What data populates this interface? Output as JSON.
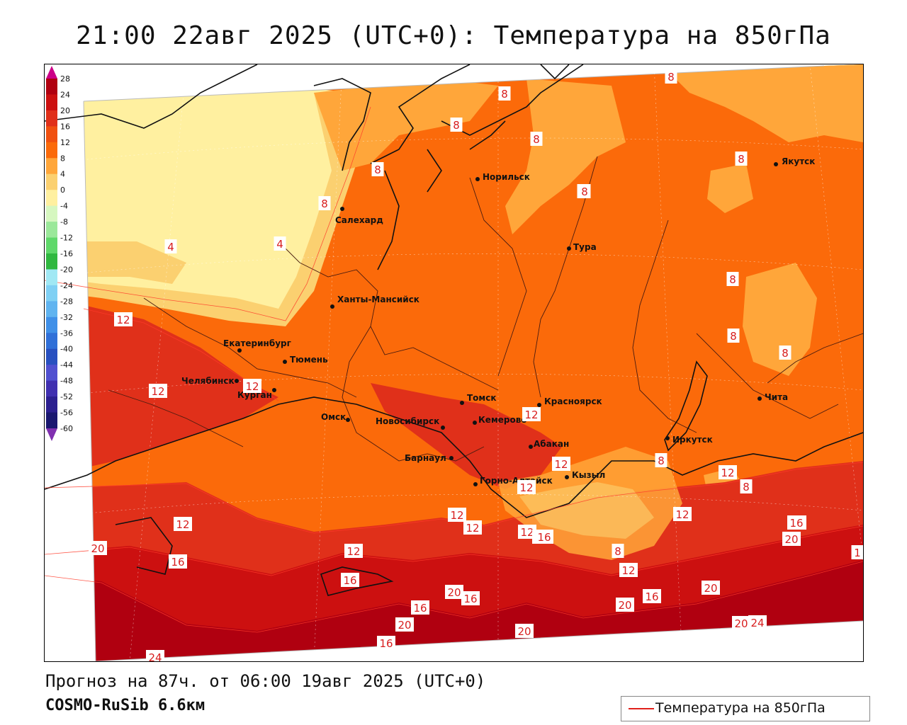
{
  "header": {
    "title": "21:00 22авг 2025 (UTC+0): Температура на 850гПа"
  },
  "footer": {
    "forecast": "Прогноз на 87ч. от 06:00 19авг 2025 (UTC+0)",
    "model": "COSMO-RuSib 6.6км"
  },
  "legend": {
    "label": "Температура на 850гПа",
    "line_color": "#e0201a"
  },
  "colorbar": {
    "levels": [
      "28",
      "24",
      "20",
      "16",
      "12",
      "8",
      "4",
      "0",
      "-4",
      "-8",
      "-12",
      "-16",
      "-20",
      "-24",
      "-28",
      "-32",
      "-36",
      "-40",
      "-44",
      "-48",
      "-52",
      "-56",
      "-60"
    ],
    "colors": [
      "#b00010",
      "#cc1010",
      "#e0301a",
      "#f05010",
      "#fb6a0a",
      "#ffa63a",
      "#fbd070",
      "#fff0a0",
      "#d6f7c0",
      "#9be89a",
      "#5fd86a",
      "#30b840",
      "#a0e8f4",
      "#7fd0f4",
      "#60b4f0",
      "#4090e8",
      "#3070d8",
      "#2850c0",
      "#5050d0",
      "#4030b0",
      "#2c2090",
      "#1a1870",
      "#7030a0"
    ]
  },
  "cities": [
    {
      "name": "Якутск"
    },
    {
      "name": "Норильск"
    },
    {
      "name": "Салехард"
    },
    {
      "name": "Тура"
    },
    {
      "name": "Ханты-Мансийск"
    },
    {
      "name": "Екатеринбург"
    },
    {
      "name": "Тюмень"
    },
    {
      "name": "Челябинск"
    },
    {
      "name": "Курган"
    },
    {
      "name": "Омск"
    },
    {
      "name": "Новосибирск"
    },
    {
      "name": "Томск"
    },
    {
      "name": "Кемерово"
    },
    {
      "name": "Красноярск"
    },
    {
      "name": "Абакан"
    },
    {
      "name": "Барнаул"
    },
    {
      "name": "Горно-Алтайск"
    },
    {
      "name": "Кызыл"
    },
    {
      "name": "Иркутск"
    },
    {
      "name": "Чита"
    }
  ],
  "isolines": [
    "8",
    "8",
    "8",
    "8",
    "8",
    "8",
    "8",
    "8",
    "8",
    "8",
    "8",
    "8",
    "4",
    "4",
    "12",
    "12",
    "12",
    "12",
    "12",
    "12",
    "12",
    "12",
    "12",
    "12",
    "12",
    "12",
    "12",
    "16",
    "16",
    "16",
    "16",
    "16",
    "16",
    "16",
    "16",
    "16",
    "20",
    "20",
    "20",
    "20",
    "20",
    "20",
    "20",
    "20",
    "24",
    "24",
    "12",
    "8",
    "8",
    "8",
    "16",
    "1"
  ]
}
